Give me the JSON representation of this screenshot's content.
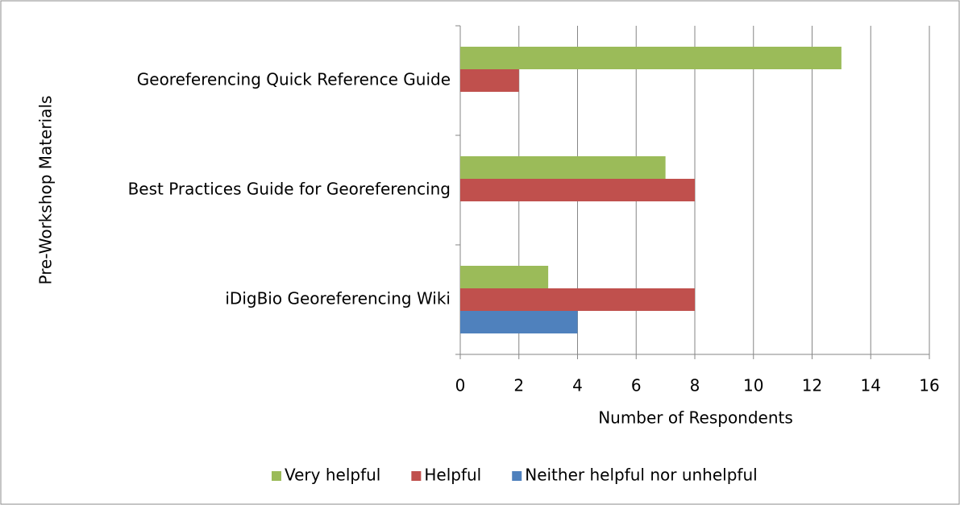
{
  "chart_data": {
    "type": "hbar",
    "ylabel": "Pre-Workshop Materials",
    "xlabel": "Number of Respondents",
    "categories": [
      "Georeferencing Quick Reference Guide",
      "Best Practices Guide for Georeferencing",
      "iDigBio Georeferencing Wiki"
    ],
    "series": [
      {
        "name": "Very helpful",
        "color": "#9bbb59",
        "values": [
          13,
          7,
          3
        ]
      },
      {
        "name": "Helpful",
        "color": "#c0504d",
        "values": [
          2,
          8,
          8
        ]
      },
      {
        "name": "Neither helpful nor unhelpful",
        "color": "#4f81bd",
        "values": [
          0,
          0,
          4
        ]
      }
    ],
    "xlim": [
      0,
      16
    ],
    "xticks": [
      0,
      2,
      4,
      6,
      8,
      10,
      12,
      14,
      16
    ],
    "grid": true,
    "legend": "bottom"
  }
}
